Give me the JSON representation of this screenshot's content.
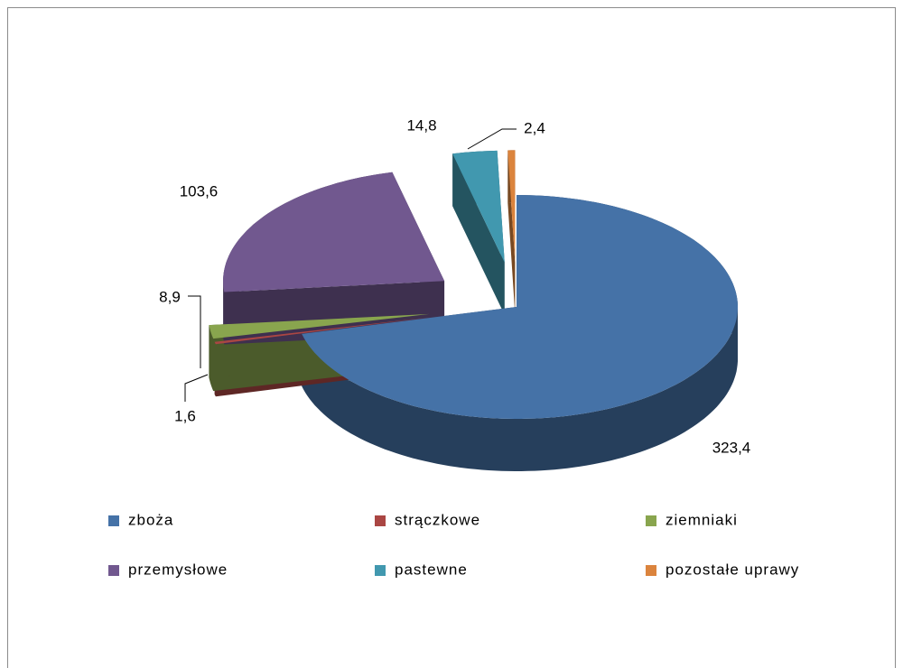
{
  "chart_data": {
    "type": "pie",
    "categories": [
      "zboża",
      "strączkowe",
      "ziemniaki",
      "przemysłowe",
      "pastewne",
      "pozostałe uprawy"
    ],
    "values": [
      323.4,
      1.6,
      8.9,
      103.6,
      14.8,
      2.4
    ],
    "value_labels": [
      "323,4",
      "1,6",
      "8,9",
      "103,6",
      "14,8",
      "2,4"
    ],
    "colors": [
      "#4572a7",
      "#aa4643",
      "#89a54e",
      "#71588f",
      "#4198af",
      "#db843d"
    ],
    "legend": "bottom"
  }
}
